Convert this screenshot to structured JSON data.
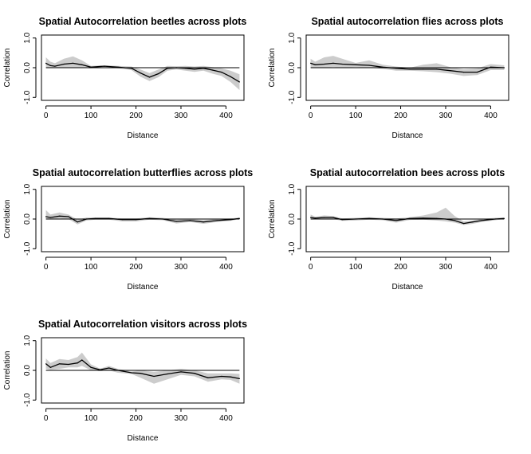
{
  "figure": {
    "background": "#ffffff"
  },
  "chart_data": [
    {
      "type": "line",
      "title": "Spatial Autocorrelation beetles across plots",
      "xlabel": "Distance",
      "ylabel": "Correlation",
      "xlim": [
        -10,
        440
      ],
      "ylim": [
        -1.1,
        1.1
      ],
      "xticks": [
        0,
        100,
        200,
        300,
        400
      ],
      "yticks": [
        -1.0,
        0.0,
        1.0
      ],
      "ytick_labels": [
        "-1.0",
        "0.0",
        "1.0"
      ],
      "reference_line": 0,
      "band_color": "#cccccc",
      "line_color": "#000000",
      "x": [
        0,
        10,
        20,
        40,
        60,
        80,
        100,
        130,
        160,
        190,
        210,
        230,
        250,
        270,
        290,
        310,
        330,
        350,
        370,
        390,
        410,
        430
      ],
      "y": [
        0.15,
        0.07,
        0.05,
        0.12,
        0.15,
        0.1,
        0.02,
        0.05,
        0.02,
        -0.02,
        -0.18,
        -0.32,
        -0.2,
        -0.02,
        0.0,
        -0.02,
        -0.05,
        -0.02,
        -0.08,
        -0.15,
        -0.3,
        -0.48
      ],
      "lower": [
        0.0,
        0.0,
        0.0,
        0.0,
        0.0,
        0.0,
        -0.02,
        0.02,
        -0.02,
        -0.08,
        -0.3,
        -0.45,
        -0.32,
        -0.1,
        -0.06,
        -0.1,
        -0.14,
        -0.1,
        -0.2,
        -0.28,
        -0.48,
        -0.75
      ],
      "upper": [
        0.35,
        0.2,
        0.15,
        0.3,
        0.38,
        0.25,
        0.06,
        0.08,
        0.06,
        0.04,
        -0.06,
        -0.18,
        -0.06,
        0.06,
        0.05,
        0.06,
        0.04,
        0.06,
        0.02,
        -0.02,
        -0.1,
        -0.22
      ]
    },
    {
      "type": "line",
      "title": "Spatial autocorrelation flies across plots",
      "xlabel": "Distance",
      "ylabel": "Correlation",
      "xlim": [
        -10,
        440
      ],
      "ylim": [
        -1.1,
        1.1
      ],
      "xticks": [
        0,
        100,
        200,
        300,
        400
      ],
      "yticks": [
        -1.0,
        0.0,
        1.0
      ],
      "ytick_labels": [
        "-1.0",
        "0.0",
        "1.0"
      ],
      "reference_line": 0,
      "band_color": "#cccccc",
      "line_color": "#000000",
      "x": [
        0,
        10,
        30,
        50,
        70,
        100,
        130,
        160,
        190,
        220,
        250,
        280,
        310,
        340,
        370,
        400,
        430
      ],
      "y": [
        0.15,
        0.1,
        0.12,
        0.15,
        0.12,
        0.1,
        0.08,
        0.02,
        -0.02,
        -0.05,
        -0.05,
        -0.05,
        -0.1,
        -0.15,
        -0.15,
        0.02,
        0.0
      ],
      "lower": [
        0.0,
        0.0,
        0.0,
        0.02,
        0.0,
        0.02,
        0.0,
        -0.04,
        -0.1,
        -0.1,
        -0.12,
        -0.15,
        -0.2,
        -0.28,
        -0.25,
        -0.08,
        -0.08
      ],
      "upper": [
        0.3,
        0.2,
        0.35,
        0.4,
        0.3,
        0.16,
        0.25,
        0.1,
        0.04,
        0.0,
        0.1,
        0.15,
        0.02,
        -0.05,
        -0.02,
        0.12,
        0.08
      ]
    },
    {
      "type": "line",
      "title": "Spatial autocorrelation butterflies across plots",
      "xlabel": "Distance",
      "ylabel": "Correlation",
      "xlim": [
        -10,
        440
      ],
      "ylim": [
        -1.1,
        1.1
      ],
      "xticks": [
        0,
        100,
        200,
        300,
        400
      ],
      "yticks": [
        -1.0,
        0.0,
        1.0
      ],
      "ytick_labels": [
        "-1.0",
        "0.0",
        "1.0"
      ],
      "reference_line": 0,
      "band_color": "#cccccc",
      "line_color": "#000000",
      "x": [
        0,
        10,
        30,
        50,
        70,
        90,
        110,
        140,
        170,
        200,
        230,
        260,
        290,
        320,
        350,
        380,
        410,
        430
      ],
      "y": [
        0.08,
        0.05,
        0.1,
        0.08,
        -0.1,
        0.0,
        0.02,
        0.02,
        -0.02,
        -0.02,
        0.02,
        0.0,
        -0.08,
        -0.05,
        -0.1,
        -0.05,
        -0.02,
        0.02
      ],
      "lower": [
        0.0,
        0.0,
        0.02,
        0.0,
        -0.18,
        -0.05,
        -0.02,
        -0.02,
        -0.08,
        -0.08,
        -0.02,
        -0.04,
        -0.15,
        -0.1,
        -0.16,
        -0.1,
        -0.06,
        0.0
      ],
      "upper": [
        0.3,
        0.15,
        0.22,
        0.15,
        -0.02,
        0.05,
        0.05,
        0.05,
        0.02,
        0.02,
        0.06,
        0.04,
        -0.02,
        0.0,
        -0.04,
        0.0,
        0.02,
        0.05
      ]
    },
    {
      "type": "line",
      "title": "Spatial autocorrelation bees across plots",
      "xlabel": "Distance",
      "ylabel": "Correlation",
      "xlim": [
        -10,
        440
      ],
      "ylim": [
        -1.1,
        1.1
      ],
      "xticks": [
        0,
        100,
        200,
        300,
        400
      ],
      "yticks": [
        -1.0,
        0.0,
        1.0
      ],
      "ytick_labels": [
        "-1.0",
        "0.0",
        "1.0"
      ],
      "reference_line": 0,
      "band_color": "#cccccc",
      "line_color": "#000000",
      "x": [
        0,
        10,
        30,
        50,
        70,
        100,
        130,
        160,
        190,
        220,
        250,
        280,
        300,
        320,
        340,
        360,
        380,
        410,
        430
      ],
      "y": [
        0.05,
        0.03,
        0.05,
        0.05,
        -0.02,
        0.0,
        0.02,
        0.0,
        -0.05,
        0.02,
        0.03,
        0.02,
        0.0,
        -0.05,
        -0.15,
        -0.1,
        -0.05,
        0.0,
        0.02
      ],
      "lower": [
        0.0,
        0.0,
        0.0,
        0.0,
        -0.06,
        -0.05,
        -0.02,
        -0.04,
        -0.12,
        -0.03,
        -0.02,
        -0.05,
        -0.08,
        -0.12,
        -0.2,
        -0.16,
        -0.1,
        -0.04,
        0.0
      ],
      "upper": [
        0.15,
        0.08,
        0.12,
        0.1,
        0.02,
        0.04,
        0.06,
        0.04,
        0.02,
        0.06,
        0.12,
        0.22,
        0.38,
        0.1,
        -0.08,
        -0.05,
        0.0,
        0.04,
        0.05
      ]
    },
    {
      "type": "line",
      "title": "Spatial Autocorrelation visitors across plots",
      "xlabel": "Distance",
      "ylabel": "Correlation",
      "xlim": [
        -10,
        440
      ],
      "ylim": [
        -1.1,
        1.1
      ],
      "xticks": [
        0,
        100,
        200,
        300,
        400
      ],
      "yticks": [
        -1.0,
        0.0,
        1.0
      ],
      "ytick_labels": [
        "-1.0",
        "0.0",
        "1.0"
      ],
      "reference_line": 0,
      "band_color": "#cccccc",
      "line_color": "#000000",
      "x": [
        0,
        10,
        30,
        50,
        70,
        80,
        100,
        120,
        140,
        160,
        190,
        210,
        240,
        270,
        300,
        330,
        360,
        390,
        410,
        430
      ],
      "y": [
        0.22,
        0.1,
        0.22,
        0.2,
        0.25,
        0.35,
        0.1,
        0.02,
        0.08,
        0.0,
        -0.08,
        -0.1,
        -0.2,
        -0.12,
        -0.05,
        -0.1,
        -0.25,
        -0.2,
        -0.22,
        -0.28
      ],
      "lower": [
        0.05,
        0.02,
        0.05,
        0.1,
        0.1,
        0.15,
        0.0,
        -0.02,
        0.0,
        -0.08,
        -0.12,
        -0.25,
        -0.45,
        -0.3,
        -0.15,
        -0.2,
        -0.38,
        -0.3,
        -0.32,
        -0.45
      ],
      "upper": [
        0.4,
        0.25,
        0.38,
        0.35,
        0.45,
        0.6,
        0.2,
        0.06,
        0.15,
        0.05,
        -0.04,
        0.0,
        -0.05,
        0.0,
        0.05,
        0.0,
        -0.1,
        -0.1,
        -0.1,
        -0.12
      ]
    }
  ]
}
